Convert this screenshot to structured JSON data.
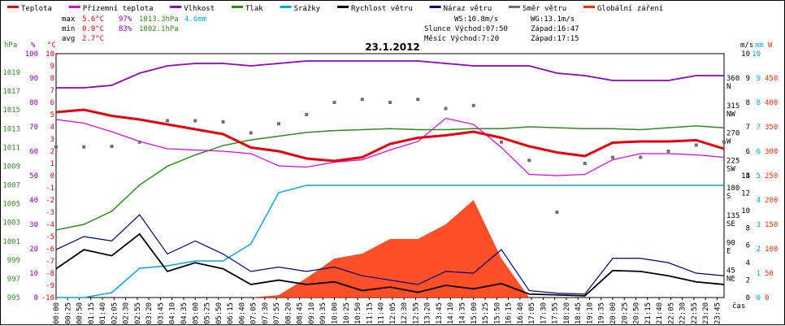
{
  "chart_data": {
    "type": "line",
    "title": "23.1.2012",
    "legend": [
      {
        "name": "Teplota",
        "color": "#e8000b"
      },
      {
        "name": "Přízemní teplota",
        "color": "#e000e0"
      },
      {
        "name": "Vlhkost",
        "color": "#9000c0"
      },
      {
        "name": "Tlak",
        "color": "#2e8b20"
      },
      {
        "name": "Srážky",
        "color": "#00a8e0"
      },
      {
        "name": "Rychlost větru",
        "color": "#000000"
      },
      {
        "name": "Náraz větru",
        "color": "#00007a"
      },
      {
        "name": "Směr větru",
        "color": "#707070"
      },
      {
        "name": "Globální záření",
        "color": "#ff3000"
      }
    ],
    "stats": {
      "max_label": "max",
      "max_temp": "5.6°C",
      "max_hum": "97%",
      "max_press": "1013.3hPa",
      "rain": "4.6mm",
      "min_label": "min",
      "min_temp": "0.9°C",
      "min_hum": "83%",
      "min_press": "1002.1hPa",
      "avg_label": "avg",
      "avg_temp": "2.7°C"
    },
    "info": {
      "ws": "WS:10.8m/s",
      "wg": "WG:13.1m/s",
      "sun": "Slunce Východ:07:50",
      "sun_set": "Západ:16:47",
      "moon": "Měsíc Východ:7:20",
      "moon_set": "Západ:17:15"
    },
    "axes": {
      "hpa_unit": "hPa",
      "hpa_ticks": [
        "1019",
        "1017",
        "1015",
        "1013",
        "1011",
        "1009",
        "1007",
        "1005",
        "1003",
        "1001",
        "999",
        "997",
        "995"
      ],
      "hum_unit": "%",
      "hum_ticks": [
        "100",
        "90",
        "80",
        "70",
        "60",
        "50",
        "40",
        "30",
        "20",
        "10",
        "0"
      ],
      "temp_unit": "°C",
      "temp_ticks_upper": [
        "10",
        "9",
        "8",
        "7",
        "6",
        "5",
        "4",
        "3",
        "2",
        "1",
        "0"
      ],
      "temp_ticks_lower": [
        "-1",
        "-2",
        "-3",
        "-4",
        "-5",
        "-6",
        "-7",
        "-8",
        "-9",
        "-10"
      ],
      "dir_ticks": [
        "360",
        "315",
        "270",
        "225",
        "180",
        "135",
        "90",
        "45"
      ],
      "dir_labels": [
        "N",
        "NW",
        "W",
        "SW",
        "S",
        "SE",
        "E",
        "NE"
      ],
      "ms_unit": "m/s",
      "ms_ticks_upper": [
        "10",
        "9",
        "8",
        "7",
        "6",
        "5"
      ],
      "ms_ticks_lower": [
        "14",
        "12",
        "10",
        "8",
        "6",
        "4",
        "2",
        "0"
      ],
      "mm_unit": "mm",
      "mm_ticks": [
        "10",
        "9",
        "8",
        "7",
        "6",
        "5",
        "4",
        "3",
        "2",
        "1",
        "0"
      ],
      "w_unit": "W",
      "w_ticks": [
        "450",
        "400",
        "350",
        "300",
        "250",
        "200",
        "150",
        "100",
        "50",
        "0"
      ],
      "x_label": "čas",
      "x_ticks": [
        "00:00",
        "00:25",
        "00:50",
        "01:15",
        "01:40",
        "02:05",
        "02:30",
        "02:55",
        "03:20",
        "03:45",
        "04:10",
        "04:35",
        "05:00",
        "05:25",
        "05:50",
        "06:15",
        "06:40",
        "07:05",
        "07:30",
        "07:55",
        "08:20",
        "08:45",
        "09:10",
        "09:35",
        "10:00",
        "10:25",
        "10:50",
        "11:15",
        "11:40",
        "12:05",
        "12:30",
        "12:55",
        "13:20",
        "13:45",
        "14:10",
        "14:35",
        "15:00",
        "15:25",
        "15:50",
        "16:15",
        "16:40",
        "17:05",
        "17:30",
        "17:55",
        "18:20",
        "18:45",
        "19:10",
        "19:35",
        "20:00",
        "20:25",
        "20:50",
        "21:15",
        "21:40",
        "22:05",
        "22:30",
        "22:55",
        "23:20",
        "23:45"
      ]
    },
    "x_hours": [
      0,
      1,
      2,
      3,
      4,
      5,
      6,
      7,
      8,
      9,
      10,
      11,
      12,
      13,
      14,
      15,
      16,
      17,
      18,
      19,
      20,
      21,
      22,
      23,
      24
    ],
    "temperature": [
      5.2,
      5.4,
      4.9,
      4.6,
      4.2,
      3.8,
      3.4,
      2.3,
      2.0,
      1.4,
      1.2,
      1.5,
      2.6,
      3.1,
      3.3,
      3.6,
      3.1,
      2.4,
      1.9,
      1.6,
      2.7,
      2.8,
      2.8,
      2.9,
      2.2
    ],
    "ground_temperature": [
      4.6,
      4.3,
      3.6,
      2.8,
      2.2,
      2.1,
      2.0,
      1.8,
      0.8,
      0.7,
      1.1,
      1.3,
      2.1,
      2.8,
      4.7,
      4.2,
      2.3,
      0.1,
      0.0,
      0.1,
      1.3,
      1.8,
      1.8,
      1.7,
      1.5
    ],
    "humidity": [
      86,
      86,
      87,
      92,
      95,
      96,
      96,
      95,
      96,
      97,
      97,
      97,
      97,
      97,
      96,
      95,
      95,
      95,
      92,
      91,
      89,
      89,
      89,
      91,
      91
    ],
    "pressure": [
      1002.2,
      1002.8,
      1004.2,
      1007.0,
      1009.0,
      1010.2,
      1011.2,
      1011.8,
      1012.2,
      1012.6,
      1012.8,
      1012.9,
      1013.0,
      1012.9,
      1012.9,
      1013.0,
      1013.0,
      1013.2,
      1013.1,
      1013.0,
      1013.0,
      1012.9,
      1013.1,
      1013.3,
      1013.1
    ],
    "rain_mm": [
      0,
      0,
      0.2,
      1.2,
      1.3,
      1.5,
      1.5,
      2.2,
      4.3,
      4.6,
      4.6,
      4.6,
      4.6,
      4.6,
      4.6,
      4.6,
      4.6,
      4.6,
      4.6,
      4.6,
      4.6,
      4.6,
      4.6,
      4.6,
      4.6
    ],
    "wind_speed": [
      3.3,
      5.5,
      4.8,
      7.3,
      3.0,
      4.0,
      3.3,
      1.5,
      2.0,
      1.5,
      1.8,
      0.8,
      1.2,
      0.6,
      1.4,
      1.0,
      1.6,
      0.4,
      0.3,
      0.2,
      3.1,
      3.0,
      2.5,
      1.8,
      1.5
    ],
    "wind_gust": [
      5.5,
      7.0,
      6.5,
      9.5,
      5.0,
      6.5,
      5.0,
      3.0,
      3.5,
      3.0,
      3.5,
      2.5,
      2.0,
      1.5,
      3.0,
      2.8,
      5.5,
      0.8,
      0.5,
      0.4,
      4.5,
      4.5,
      4.0,
      2.8,
      2.5
    ],
    "wind_direction": [
      247,
      247,
      248,
      255,
      290,
      290,
      288,
      270,
      285,
      300,
      320,
      325,
      320,
      325,
      310,
      315,
      255,
      225,
      140,
      220,
      230,
      230,
      240,
      250,
      255
    ],
    "global_radiation": [
      0,
      0,
      0,
      0,
      0,
      0,
      0,
      0,
      5,
      40,
      80,
      90,
      120,
      120,
      150,
      200,
      80,
      0,
      0,
      0,
      0,
      0,
      0,
      0,
      0
    ]
  }
}
